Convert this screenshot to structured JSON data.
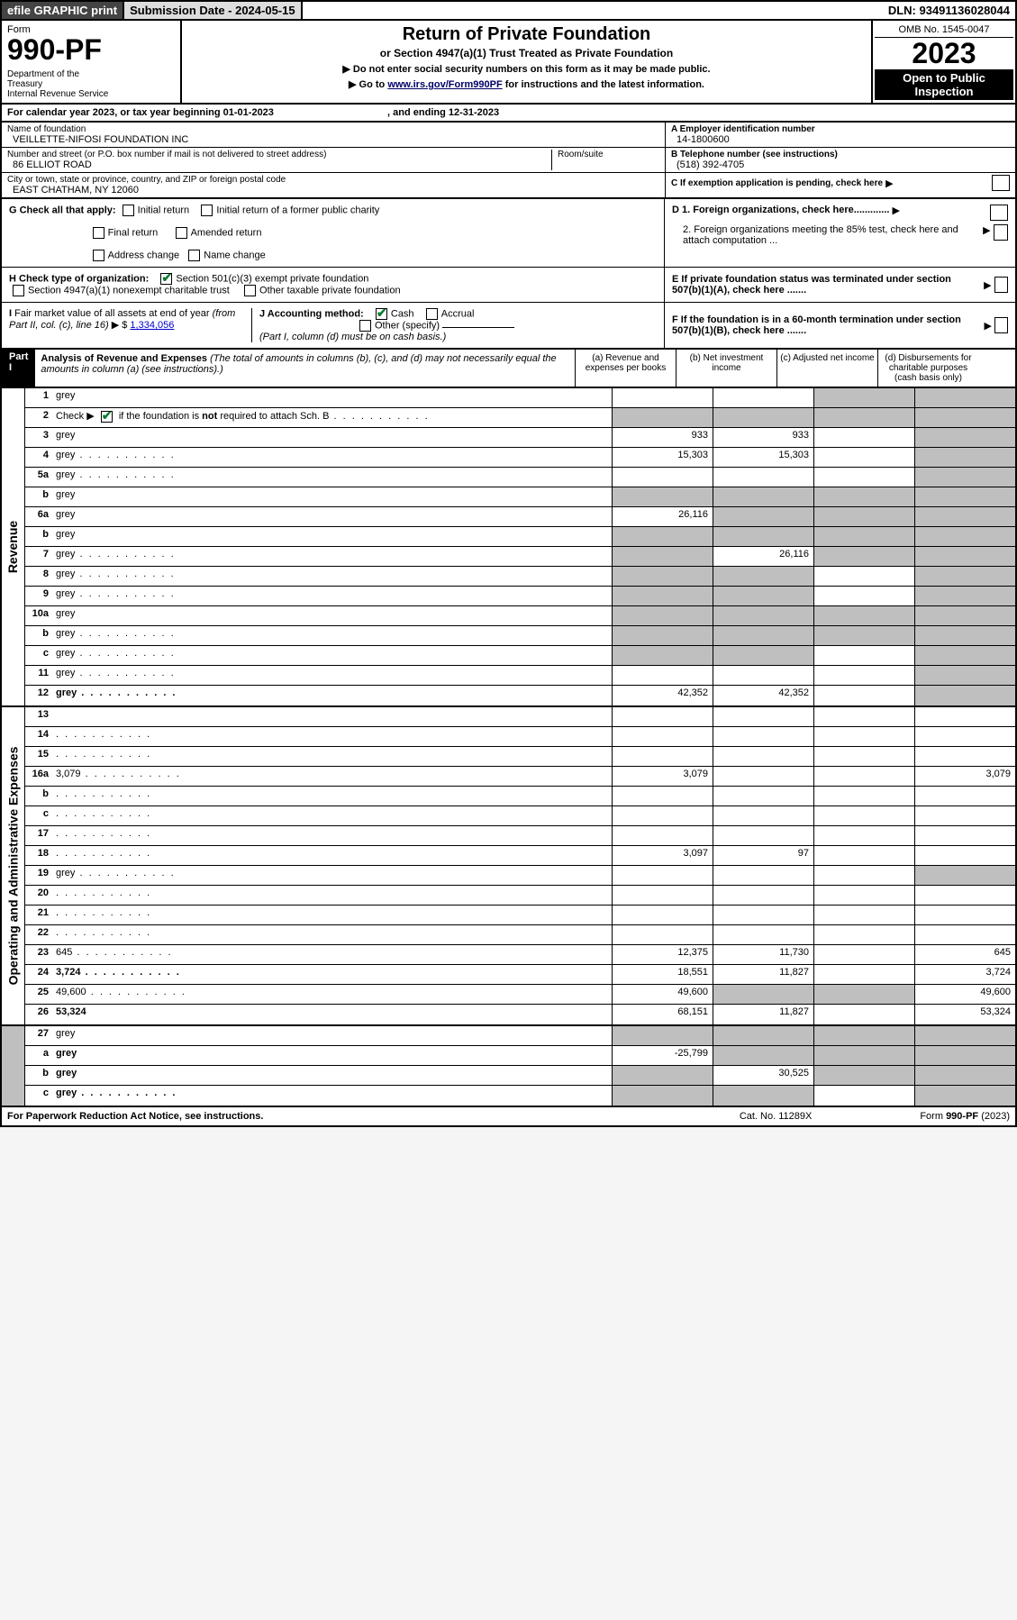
{
  "topbar": {
    "efile": "efile GRAPHIC print",
    "submission": "Submission Date - 2024-05-15",
    "dln": "DLN: 93491136028044"
  },
  "header": {
    "form_label": "Form",
    "form_number": "990-PF",
    "dept": "Department of the Treasury\nInternal Revenue Service",
    "title": "Return of Private Foundation",
    "subtitle": "or Section 4947(a)(1) Trust Treated as Private Foundation",
    "note1": "▶ Do not enter social security numbers on this form as it may be made public.",
    "note2": "▶ Go to www.irs.gov/Form990PF for instructions and the latest information.",
    "form_link": "www.irs.gov/Form990PF",
    "omb": "OMB No. 1545-0047",
    "year": "2023",
    "open": "Open to Public Inspection"
  },
  "calendar": {
    "text": "For calendar year 2023, or tax year beginning 01-01-2023",
    "ending": ", and ending 12-31-2023"
  },
  "id": {
    "name_label": "Name of foundation",
    "name": "VEILLETTE-NIFOSI FOUNDATION INC",
    "street_label": "Number and street (or P.O. box number if mail is not delivered to street address)",
    "street": "86 ELLIOT ROAD",
    "room_label": "Room/suite",
    "city_label": "City or town, state or province, country, and ZIP or foreign postal code",
    "city": "EAST CHATHAM, NY  12060",
    "a_label": "A Employer identification number",
    "a_val": "14-1800600",
    "b_label": "B Telephone number (see instructions)",
    "b_val": "(518) 392-4705",
    "c_label": "C If exemption application is pending, check here"
  },
  "checks": {
    "g_label": "G Check all that apply:",
    "g1": "Initial return",
    "g2": "Initial return of a former public charity",
    "g3": "Final return",
    "g4": "Amended return",
    "g5": "Address change",
    "g6": "Name change",
    "h_label": "H Check type of organization:",
    "h1": "Section 501(c)(3) exempt private foundation",
    "h2": "Section 4947(a)(1) nonexempt charitable trust",
    "h3": "Other taxable private foundation",
    "i_label": "I Fair market value of all assets at end of year (from Part II, col. (c), line 16) ▶ $",
    "i_val": "1,334,056",
    "j_label": "J Accounting method:",
    "j1": "Cash",
    "j2": "Accrual",
    "j3": "Other (specify)",
    "j_note": "(Part I, column (d) must be on cash basis.)",
    "d1": "D 1. Foreign organizations, check here.............",
    "d2": "2. Foreign organizations meeting the 85% test, check here and attach computation ...",
    "e": "E  If private foundation status was terminated under section 507(b)(1)(A), check here .......",
    "f": "F  If the foundation is in a 60-month termination under section 507(b)(1)(B), check here .......  "
  },
  "part1": {
    "label": "Part I",
    "title": "Analysis of Revenue and Expenses",
    "title_note": "(The total of amounts in columns (b), (c), and (d) may not necessarily equal the amounts in column (a) (see instructions).)",
    "col_a": "(a)  Revenue and expenses per books",
    "col_b": "(b)  Net investment income",
    "col_c": "(c)  Adjusted net income",
    "col_d": "(d)  Disbursements for charitable purposes (cash basis only)",
    "side_rev": "Revenue",
    "side_exp": "Operating and Administrative Expenses"
  },
  "rows": [
    {
      "n": "1",
      "d": "grey",
      "a": "",
      "b": "",
      "c": "grey"
    },
    {
      "n": "2",
      "d": "grey",
      "a": "grey",
      "b": "grey",
      "c": "grey",
      "chk": true,
      "dots": true
    },
    {
      "n": "3",
      "d": "grey",
      "a": "933",
      "b": "933",
      "c": ""
    },
    {
      "n": "4",
      "d": "grey",
      "a": "15,303",
      "b": "15,303",
      "c": "",
      "dots": true
    },
    {
      "n": "5a",
      "d": "grey",
      "a": "",
      "b": "",
      "c": "",
      "dots": true
    },
    {
      "n": "b",
      "d": "grey",
      "a": "grey",
      "b": "grey",
      "c": "grey",
      "ul": true
    },
    {
      "n": "6a",
      "d": "grey",
      "a": "26,116",
      "b": "grey",
      "c": "grey"
    },
    {
      "n": "b",
      "d": "grey",
      "a": "grey",
      "b": "grey",
      "c": "grey"
    },
    {
      "n": "7",
      "d": "grey",
      "a": "grey",
      "b": "26,116",
      "c": "grey",
      "dots": true
    },
    {
      "n": "8",
      "d": "grey",
      "a": "grey",
      "b": "grey",
      "c": "",
      "dots": true
    },
    {
      "n": "9",
      "d": "grey",
      "a": "grey",
      "b": "grey",
      "c": "",
      "dots": true
    },
    {
      "n": "10a",
      "d": "grey",
      "a": "grey",
      "b": "grey",
      "c": "grey",
      "ul": true
    },
    {
      "n": "b",
      "d": "grey",
      "a": "grey",
      "b": "grey",
      "c": "grey",
      "ul": true,
      "dots": true
    },
    {
      "n": "c",
      "d": "grey",
      "a": "grey",
      "b": "grey",
      "c": "",
      "dots": true
    },
    {
      "n": "11",
      "d": "grey",
      "a": "",
      "b": "",
      "c": "",
      "dots": true
    },
    {
      "n": "12",
      "d": "grey",
      "a": "42,352",
      "b": "42,352",
      "c": "",
      "bold": true,
      "dots": true
    }
  ],
  "exp_rows": [
    {
      "n": "13",
      "d": "",
      "a": "",
      "b": "",
      "c": ""
    },
    {
      "n": "14",
      "d": "",
      "a": "",
      "b": "",
      "c": "",
      "dots": true
    },
    {
      "n": "15",
      "d": "",
      "a": "",
      "b": "",
      "c": "",
      "dots": true
    },
    {
      "n": "16a",
      "d": "3,079",
      "a": "3,079",
      "b": "",
      "c": "",
      "dots": true
    },
    {
      "n": "b",
      "d": "",
      "a": "",
      "b": "",
      "c": "",
      "dots": true
    },
    {
      "n": "c",
      "d": "",
      "a": "",
      "b": "",
      "c": "",
      "dots": true
    },
    {
      "n": "17",
      "d": "",
      "a": "",
      "b": "",
      "c": "",
      "dots": true
    },
    {
      "n": "18",
      "d": "",
      "a": "3,097",
      "b": "97",
      "c": "",
      "dots": true
    },
    {
      "n": "19",
      "d": "grey",
      "a": "",
      "b": "",
      "c": "",
      "dots": true
    },
    {
      "n": "20",
      "d": "",
      "a": "",
      "b": "",
      "c": "",
      "dots": true
    },
    {
      "n": "21",
      "d": "",
      "a": "",
      "b": "",
      "c": "",
      "dots": true
    },
    {
      "n": "22",
      "d": "",
      "a": "",
      "b": "",
      "c": "",
      "dots": true
    },
    {
      "n": "23",
      "d": "645",
      "a": "12,375",
      "b": "11,730",
      "c": "",
      "dots": true
    },
    {
      "n": "24",
      "d": "3,724",
      "a": "18,551",
      "b": "11,827",
      "c": "",
      "bold": true,
      "dots": true
    },
    {
      "n": "25",
      "d": "49,600",
      "a": "49,600",
      "b": "grey",
      "c": "grey",
      "dots": true
    },
    {
      "n": "26",
      "d": "53,324",
      "a": "68,151",
      "b": "11,827",
      "c": "",
      "bold": true
    }
  ],
  "bottom_rows": [
    {
      "n": "27",
      "d": "grey",
      "a": "grey",
      "b": "grey",
      "c": "grey"
    },
    {
      "n": "a",
      "d": "grey",
      "a": "-25,799",
      "b": "grey",
      "c": "grey",
      "bold": true
    },
    {
      "n": "b",
      "d": "grey",
      "a": "grey",
      "b": "30,525",
      "c": "grey",
      "bold": true
    },
    {
      "n": "c",
      "d": "grey",
      "a": "grey",
      "b": "grey",
      "c": "",
      "bold": true,
      "dots": true
    }
  ],
  "footer": {
    "left": "For Paperwork Reduction Act Notice, see instructions.",
    "mid": "Cat. No. 11289X",
    "right": "Form 990-PF (2023)"
  }
}
